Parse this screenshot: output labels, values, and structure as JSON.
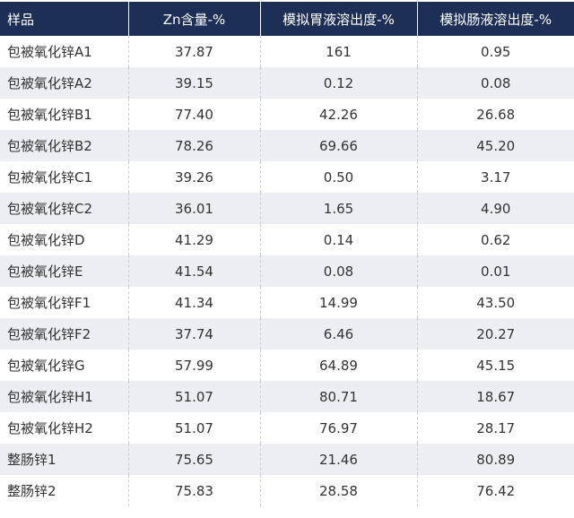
{
  "table": {
    "header": [
      "样品",
      "Zn含量-%",
      "模拟胃液溶出度-%",
      "模拟肠液溶出度-%"
    ],
    "rows": [
      [
        "包被氧化锌A1",
        "37.87",
        "161",
        "0.95"
      ],
      [
        "包被氧化锌A2",
        "39.15",
        "0.12",
        "0.08"
      ],
      [
        "包被氧化锌B1",
        "77.40",
        "42.26",
        "26.68"
      ],
      [
        "包被氧化锌B2",
        "78.26",
        "69.66",
        "45.20"
      ],
      [
        "包被氧化锌C1",
        "39.26",
        "0.50",
        "3.17"
      ],
      [
        "包被氧化锌C2",
        "36.01",
        "1.65",
        "4.90"
      ],
      [
        "包被氧化锌D",
        "41.29",
        "0.14",
        "0.62"
      ],
      [
        "包被氧化锌E",
        "41.54",
        "0.08",
        "0.01"
      ],
      [
        "包被氧化锌F1",
        "41.34",
        "14.99",
        "43.50"
      ],
      [
        "包被氧化锌F2",
        "37.74",
        "6.46",
        "20.27"
      ],
      [
        "包被氧化锌G",
        "57.99",
        "64.89",
        "45.15"
      ],
      [
        "包被氧化锌H1",
        "51.07",
        "80.71",
        "18.67"
      ],
      [
        "包被氧化锌H2",
        "51.07",
        "76.97",
        "28.17"
      ],
      [
        "整肠锌1",
        "75.65",
        "21.46",
        "80.89"
      ],
      [
        "整肠锌2",
        "75.83",
        "28.58",
        "76.42"
      ]
    ]
  }
}
